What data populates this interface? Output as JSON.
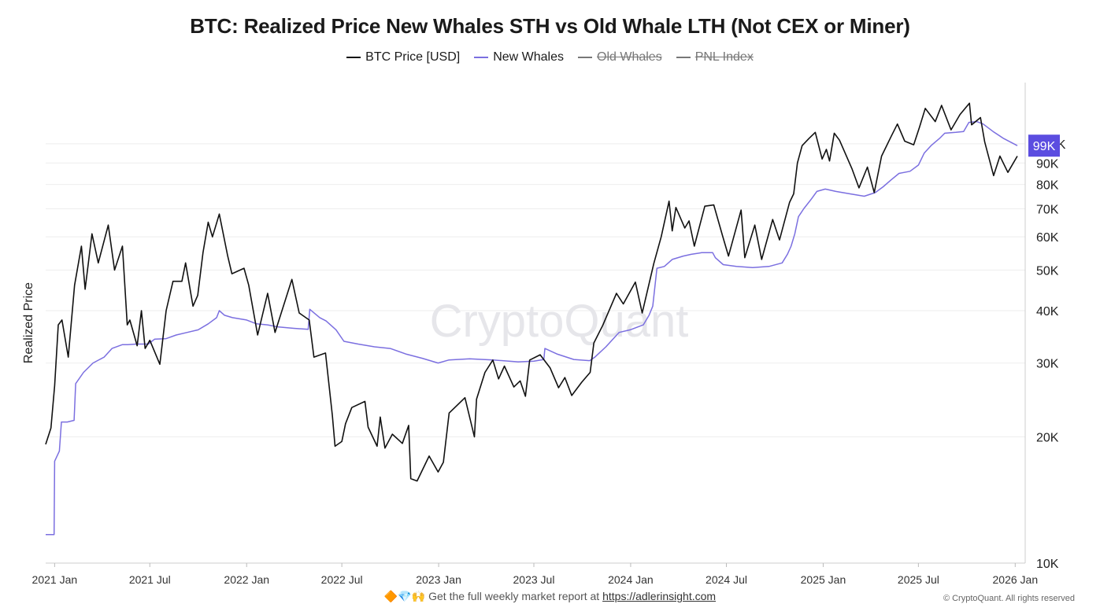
{
  "header": {
    "title": "BTC: Realized Price New Whales STH vs Old Whale LTH (Not CEX or Miner)"
  },
  "legend": [
    {
      "label": "BTC Price [USD]",
      "color": "#111111",
      "active": true
    },
    {
      "label": "New Whales",
      "color": "#7b6fe0",
      "active": true
    },
    {
      "label": "Old Whales",
      "color": "#777777",
      "active": false
    },
    {
      "label": "PNL Index",
      "color": "#777777",
      "active": false
    }
  ],
  "watermark": "CryptoQuant",
  "footer": {
    "emojis": "🔶💎🙌",
    "text": "Get the full weekly market report at",
    "link": "https://adlerinsight.com",
    "copyright": "© CryptoQuant. All rights reserved"
  },
  "chart_data": {
    "type": "line",
    "title": "BTC: Realized Price New Whales STH vs Old Whale LTH (Not CEX or Miner)",
    "ylabel": "Realized Price",
    "y_scale": "log",
    "ylim": [
      10000,
      140000
    ],
    "xlim": [
      "2020-12-15",
      "2026-01-20"
    ],
    "x_ticks": [
      {
        "date": "2021-01-01",
        "label": "2021 Jan"
      },
      {
        "date": "2021-07-01",
        "label": "2021 Jul"
      },
      {
        "date": "2022-01-01",
        "label": "2022 Jan"
      },
      {
        "date": "2022-07-01",
        "label": "2022 Jul"
      },
      {
        "date": "2023-01-01",
        "label": "2023 Jan"
      },
      {
        "date": "2023-07-01",
        "label": "2023 Jul"
      },
      {
        "date": "2024-01-01",
        "label": "2024 Jan"
      },
      {
        "date": "2024-07-01",
        "label": "2024 Jul"
      },
      {
        "date": "2025-01-01",
        "label": "2025 Jan"
      },
      {
        "date": "2025-07-01",
        "label": "2025 Jul"
      },
      {
        "date": "2026-01-01",
        "label": "2026 Jan"
      }
    ],
    "y_ticks": [
      {
        "value": 10000,
        "label": "10K"
      },
      {
        "value": 20000,
        "label": "20K"
      },
      {
        "value": 30000,
        "label": "30K"
      },
      {
        "value": 40000,
        "label": "40K"
      },
      {
        "value": 50000,
        "label": "50K"
      },
      {
        "value": 60000,
        "label": "60K"
      },
      {
        "value": 70000,
        "label": "70K"
      },
      {
        "value": 80000,
        "label": "80K"
      },
      {
        "value": 90000,
        "label": "90K"
      },
      {
        "value": 100000,
        "label": "100K"
      }
    ],
    "current_value_label": {
      "text": "99K",
      "value": 99000,
      "color": "#5b4de0"
    },
    "series": [
      {
        "name": "BTC Price [USD]",
        "color": "#111111",
        "points": [
          [
            "2020-12-15",
            19200
          ],
          [
            "2020-12-25",
            21000
          ],
          [
            "2021-01-01",
            26500
          ],
          [
            "2021-01-08",
            37000
          ],
          [
            "2021-01-15",
            38000
          ],
          [
            "2021-01-27",
            31000
          ],
          [
            "2021-02-08",
            46000
          ],
          [
            "2021-02-21",
            57000
          ],
          [
            "2021-02-28",
            45000
          ],
          [
            "2021-03-13",
            61000
          ],
          [
            "2021-03-25",
            52000
          ],
          [
            "2021-04-13",
            64000
          ],
          [
            "2021-04-25",
            50000
          ],
          [
            "2021-05-10",
            57000
          ],
          [
            "2021-05-19",
            37000
          ],
          [
            "2021-05-24",
            38000
          ],
          [
            "2021-06-07",
            33000
          ],
          [
            "2021-06-15",
            40000
          ],
          [
            "2021-06-22",
            32500
          ],
          [
            "2021-07-01",
            34000
          ],
          [
            "2021-07-20",
            29800
          ],
          [
            "2021-08-01",
            40000
          ],
          [
            "2021-08-14",
            47000
          ],
          [
            "2021-08-31",
            47000
          ],
          [
            "2021-09-07",
            52000
          ],
          [
            "2021-09-21",
            41000
          ],
          [
            "2021-09-30",
            43500
          ],
          [
            "2021-10-10",
            55000
          ],
          [
            "2021-10-20",
            65000
          ],
          [
            "2021-10-28",
            60000
          ],
          [
            "2021-11-10",
            68000
          ],
          [
            "2021-11-26",
            54000
          ],
          [
            "2021-12-04",
            49000
          ],
          [
            "2021-12-27",
            50500
          ],
          [
            "2022-01-05",
            46000
          ],
          [
            "2022-01-22",
            35000
          ],
          [
            "2022-02-10",
            44000
          ],
          [
            "2022-02-24",
            35500
          ],
          [
            "2022-03-28",
            47500
          ],
          [
            "2022-04-11",
            39500
          ],
          [
            "2022-04-30",
            38000
          ],
          [
            "2022-05-09",
            31000
          ],
          [
            "2022-05-31",
            31700
          ],
          [
            "2022-06-13",
            22500
          ],
          [
            "2022-06-18",
            19000
          ],
          [
            "2022-07-01",
            19500
          ],
          [
            "2022-07-08",
            21500
          ],
          [
            "2022-07-20",
            23500
          ],
          [
            "2022-08-14",
            24300
          ],
          [
            "2022-08-20",
            21100
          ],
          [
            "2022-09-06",
            19000
          ],
          [
            "2022-09-12",
            22300
          ],
          [
            "2022-09-21",
            18800
          ],
          [
            "2022-10-05",
            20300
          ],
          [
            "2022-10-24",
            19300
          ],
          [
            "2022-11-05",
            21300
          ],
          [
            "2022-11-09",
            15900
          ],
          [
            "2022-11-21",
            15700
          ],
          [
            "2022-12-14",
            18000
          ],
          [
            "2022-12-31",
            16500
          ],
          [
            "2023-01-10",
            17400
          ],
          [
            "2023-01-21",
            22800
          ],
          [
            "2023-02-20",
            24800
          ],
          [
            "2023-03-10",
            20000
          ],
          [
            "2023-03-14",
            24600
          ],
          [
            "2023-03-30",
            28500
          ],
          [
            "2023-04-14",
            30500
          ],
          [
            "2023-04-25",
            27500
          ],
          [
            "2023-05-06",
            29500
          ],
          [
            "2023-05-24",
            26300
          ],
          [
            "2023-06-05",
            27200
          ],
          [
            "2023-06-15",
            25000
          ],
          [
            "2023-06-23",
            30500
          ],
          [
            "2023-07-13",
            31400
          ],
          [
            "2023-08-01",
            29200
          ],
          [
            "2023-08-17",
            26200
          ],
          [
            "2023-08-29",
            27700
          ],
          [
            "2023-09-11",
            25100
          ],
          [
            "2023-09-30",
            27000
          ],
          [
            "2023-10-16",
            28500
          ],
          [
            "2023-10-23",
            33500
          ],
          [
            "2023-11-09",
            36900
          ],
          [
            "2023-12-05",
            44000
          ],
          [
            "2023-12-18",
            41500
          ],
          [
            "2024-01-10",
            46800
          ],
          [
            "2024-01-23",
            39500
          ],
          [
            "2024-02-14",
            51800
          ],
          [
            "2024-02-28",
            60000
          ],
          [
            "2024-03-14",
            73000
          ],
          [
            "2024-03-20",
            62000
          ],
          [
            "2024-03-27",
            70500
          ],
          [
            "2024-04-13",
            63000
          ],
          [
            "2024-04-21",
            65500
          ],
          [
            "2024-05-01",
            57000
          ],
          [
            "2024-05-21",
            71000
          ],
          [
            "2024-06-07",
            71500
          ],
          [
            "2024-06-24",
            60200
          ],
          [
            "2024-07-05",
            54000
          ],
          [
            "2024-07-29",
            69500
          ],
          [
            "2024-08-05",
            53500
          ],
          [
            "2024-08-24",
            64000
          ],
          [
            "2024-09-06",
            53000
          ],
          [
            "2024-09-27",
            66000
          ],
          [
            "2024-10-10",
            59000
          ],
          [
            "2024-10-29",
            72500
          ],
          [
            "2024-11-06",
            76000
          ],
          [
            "2024-11-13",
            90000
          ],
          [
            "2024-11-22",
            99000
          ],
          [
            "2024-12-05",
            103000
          ],
          [
            "2024-12-17",
            106500
          ],
          [
            "2024-12-30",
            92000
          ],
          [
            "2025-01-07",
            97000
          ],
          [
            "2025-01-13",
            91000
          ],
          [
            "2025-01-22",
            106000
          ],
          [
            "2025-02-01",
            102000
          ],
          [
            "2025-02-25",
            87000
          ],
          [
            "2025-03-10",
            78500
          ],
          [
            "2025-03-26",
            88000
          ],
          [
            "2025-04-08",
            76500
          ],
          [
            "2025-04-22",
            93500
          ],
          [
            "2025-05-10",
            104000
          ],
          [
            "2025-05-22",
            111500
          ],
          [
            "2025-06-05",
            101500
          ],
          [
            "2025-06-22",
            99500
          ],
          [
            "2025-07-03",
            109500
          ],
          [
            "2025-07-14",
            121500
          ],
          [
            "2025-08-02",
            113000
          ],
          [
            "2025-08-14",
            123500
          ],
          [
            "2025-09-01",
            108000
          ],
          [
            "2025-09-18",
            117500
          ],
          [
            "2025-10-06",
            125000
          ],
          [
            "2025-10-10",
            111000
          ],
          [
            "2025-10-27",
            115500
          ],
          [
            "2025-11-04",
            101000
          ],
          [
            "2025-11-21",
            84000
          ],
          [
            "2025-12-03",
            93500
          ],
          [
            "2025-12-18",
            85500
          ],
          [
            "2026-01-05",
            93500
          ]
        ]
      },
      {
        "name": "New Whales",
        "color": "#7b6fe0",
        "points": [
          [
            "2020-12-15",
            11700
          ],
          [
            "2020-12-31",
            11700
          ],
          [
            "2021-01-01",
            17500
          ],
          [
            "2021-01-10",
            18500
          ],
          [
            "2021-01-14",
            21700
          ],
          [
            "2021-01-25",
            21700
          ],
          [
            "2021-02-07",
            21900
          ],
          [
            "2021-02-10",
            26800
          ],
          [
            "2021-02-25",
            28500
          ],
          [
            "2021-03-15",
            30000
          ],
          [
            "2021-04-05",
            31000
          ],
          [
            "2021-04-20",
            32500
          ],
          [
            "2021-05-10",
            33200
          ],
          [
            "2021-05-20",
            33200
          ],
          [
            "2021-06-05",
            33300
          ],
          [
            "2021-06-28",
            33300
          ],
          [
            "2021-07-10",
            34200
          ],
          [
            "2021-08-01",
            34300
          ],
          [
            "2021-08-20",
            35000
          ],
          [
            "2021-09-10",
            35500
          ],
          [
            "2021-10-01",
            36000
          ],
          [
            "2021-10-20",
            37200
          ],
          [
            "2021-11-05",
            38500
          ],
          [
            "2021-11-10",
            40000
          ],
          [
            "2021-11-20",
            39000
          ],
          [
            "2021-12-05",
            38500
          ],
          [
            "2022-01-01",
            38000
          ],
          [
            "2022-01-20",
            37200
          ],
          [
            "2022-02-10",
            37000
          ],
          [
            "2022-03-01",
            36600
          ],
          [
            "2022-04-01",
            36300
          ],
          [
            "2022-04-28",
            36100
          ],
          [
            "2022-05-01",
            40300
          ],
          [
            "2022-05-20",
            38500
          ],
          [
            "2022-06-01",
            37800
          ],
          [
            "2022-06-20",
            36000
          ],
          [
            "2022-07-05",
            33800
          ],
          [
            "2022-08-01",
            33300
          ],
          [
            "2022-09-01",
            32800
          ],
          [
            "2022-10-01",
            32500
          ],
          [
            "2022-11-01",
            31500
          ],
          [
            "2022-12-01",
            30800
          ],
          [
            "2022-12-31",
            30000
          ],
          [
            "2023-01-20",
            30500
          ],
          [
            "2023-03-01",
            30700
          ],
          [
            "2023-04-15",
            30500
          ],
          [
            "2023-06-01",
            30200
          ],
          [
            "2023-07-01",
            30300
          ],
          [
            "2023-07-20",
            30600
          ],
          [
            "2023-07-22",
            32500
          ],
          [
            "2023-08-15",
            31500
          ],
          [
            "2023-09-15",
            30600
          ],
          [
            "2023-10-15",
            30400
          ],
          [
            "2023-10-25",
            31000
          ],
          [
            "2023-11-15",
            32800
          ],
          [
            "2023-12-10",
            35500
          ],
          [
            "2023-12-31",
            36000
          ],
          [
            "2024-01-25",
            37000
          ],
          [
            "2024-02-05",
            39000
          ],
          [
            "2024-02-12",
            41000
          ],
          [
            "2024-02-20",
            50500
          ],
          [
            "2024-03-05",
            51000
          ],
          [
            "2024-03-20",
            53000
          ],
          [
            "2024-04-10",
            54000
          ],
          [
            "2024-04-25",
            54500
          ],
          [
            "2024-05-15",
            55000
          ],
          [
            "2024-06-05",
            55000
          ],
          [
            "2024-06-10",
            53500
          ],
          [
            "2024-06-25",
            51500
          ],
          [
            "2024-07-20",
            51000
          ],
          [
            "2024-08-20",
            50700
          ],
          [
            "2024-09-20",
            51000
          ],
          [
            "2024-10-15",
            52000
          ],
          [
            "2024-10-25",
            54500
          ],
          [
            "2024-11-01",
            57000
          ],
          [
            "2024-11-08",
            61000
          ],
          [
            "2024-11-15",
            67000
          ],
          [
            "2024-11-25",
            70000
          ],
          [
            "2024-12-10",
            74000
          ],
          [
            "2024-12-20",
            77000
          ],
          [
            "2025-01-05",
            78000
          ],
          [
            "2025-01-25",
            77000
          ],
          [
            "2025-02-20",
            76000
          ],
          [
            "2025-03-20",
            75000
          ],
          [
            "2025-04-10",
            76500
          ],
          [
            "2025-04-25",
            79000
          ],
          [
            "2025-05-10",
            82000
          ],
          [
            "2025-05-25",
            85000
          ],
          [
            "2025-06-15",
            86000
          ],
          [
            "2025-07-01",
            89000
          ],
          [
            "2025-07-12",
            95000
          ],
          [
            "2025-07-25",
            99000
          ],
          [
            "2025-08-10",
            103000
          ],
          [
            "2025-08-20",
            106000
          ],
          [
            "2025-09-10",
            106500
          ],
          [
            "2025-09-25",
            107000
          ],
          [
            "2025-10-05",
            112500
          ],
          [
            "2025-10-20",
            113000
          ],
          [
            "2025-11-01",
            111500
          ],
          [
            "2025-11-20",
            107000
          ],
          [
            "2025-12-10",
            103000
          ],
          [
            "2026-01-05",
            99000
          ]
        ]
      }
    ]
  }
}
